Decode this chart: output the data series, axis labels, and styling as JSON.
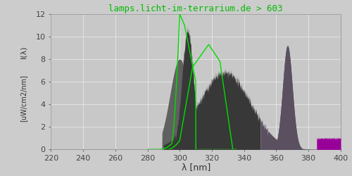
{
  "title": "lamps.licht-im-terrarium.de > 603",
  "xlabel": "λ [nm]",
  "ylabel_top": "I(λ)",
  "ylabel_bottom": "[uW/cm2/nm]",
  "xlim": [
    220,
    400
  ],
  "ylim": [
    0,
    12
  ],
  "yticks": [
    0,
    2,
    4,
    6,
    8,
    10,
    12
  ],
  "xticks": [
    220,
    240,
    260,
    280,
    300,
    320,
    340,
    360,
    380,
    400
  ],
  "bg_color": "#cccccc",
  "plot_bg_color": "#c8c8c8",
  "grid_color": "#e8e8e8",
  "spectrum_dark_color": "#383838",
  "spectrum_left_color": "#606060",
  "spectrum_mid_color": "#5a5060",
  "spectrum_purple_color": "#990099",
  "green_line_color": "#00dd00",
  "title_color": "#00bb00",
  "title_fontsize": 9,
  "axis_fontsize": 8
}
